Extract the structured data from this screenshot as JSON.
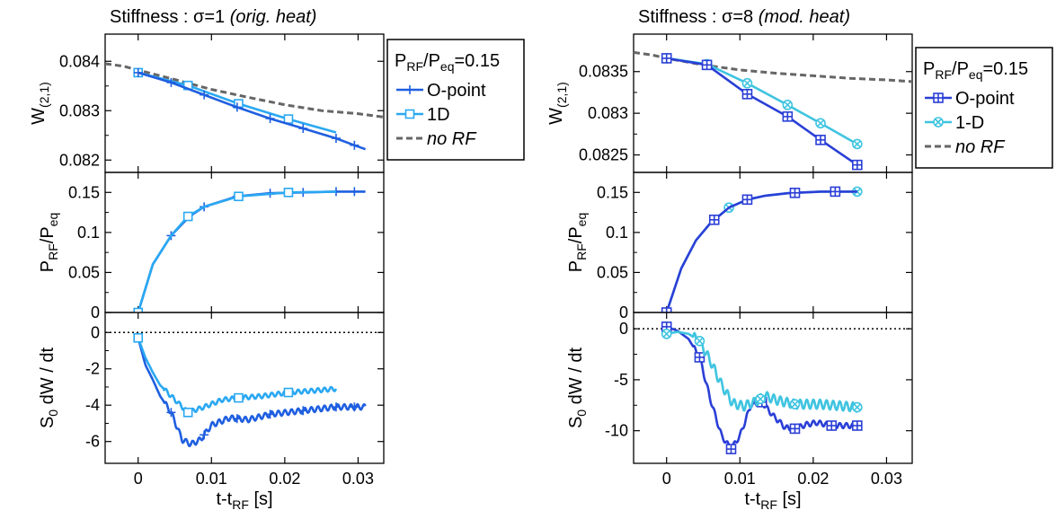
{
  "colors": {
    "opoint_left": "#1f5fe0",
    "oned_left": "#2aa8f2",
    "opoint_right": "#2a3fd6",
    "oned_right": "#3fc4e0",
    "norf": "#666666",
    "zero_line": "#000000"
  },
  "chart_data": [
    {
      "type": "line",
      "title": {
        "prefix": "Stiffness : ",
        "sym": "σ",
        "eq": "=1 ",
        "note": "(orig. heat)"
      },
      "xlabel": "t-t",
      "xlabel_sub": "RF",
      "xlabel_tail": " [s]",
      "xlim": [
        -0.0045,
        0.0335
      ],
      "xticks": [
        0,
        0.01,
        0.02,
        0.03
      ],
      "xtick_labels": [
        "0",
        "0.01",
        "0.02",
        "0.03"
      ],
      "legend": {
        "title_parts": [
          "P",
          "RF",
          "/P",
          "eq",
          "=0.15"
        ],
        "entries": [
          {
            "label": "O-point",
            "marker": "plus",
            "color_key": "opoint_left",
            "dash": false
          },
          {
            "label": "1D",
            "marker": "square",
            "color_key": "oned_left",
            "dash": false
          },
          {
            "label": "no RF",
            "marker": "none",
            "color_key": "norf",
            "dash": true,
            "italic": true
          }
        ]
      },
      "panels": [
        {
          "ylabel": "W",
          "ylabel_sub": "(2,1)",
          "ylim": [
            0.08175,
            0.08455
          ],
          "yticks": [
            0.082,
            0.083,
            0.084
          ],
          "ytick_labels": [
            "0.082",
            "0.083",
            "0.084"
          ],
          "series": [
            {
              "name": "no RF",
              "color_key": "norf",
              "dash": true,
              "marker": "none",
              "x": [
                -0.0045,
                -0.002,
                0,
                0.005,
                0.01,
                0.015,
                0.02,
                0.025,
                0.03,
                0.0335
              ],
              "y": [
                0.08395,
                0.0839,
                0.08382,
                0.08363,
                0.08343,
                0.08327,
                0.08312,
                0.083,
                0.08294,
                0.08287
              ]
            },
            {
              "name": "1D",
              "color_key": "oned_left",
              "dash": false,
              "marker": "square",
              "x": [
                0,
                0.0068,
                0.0137,
                0.0205,
                0.027
              ],
              "y": [
                0.08377,
                0.08351,
                0.08314,
                0.08283,
                0.08256
              ],
              "markers_x": [
                0,
                0.0068,
                0.0137,
                0.0205
              ]
            },
            {
              "name": "O-point",
              "color_key": "opoint_left",
              "dash": false,
              "marker": "plus",
              "x": [
                0,
                0.0045,
                0.009,
                0.0135,
                0.018,
                0.0225,
                0.027,
                0.0295,
                0.031
              ],
              "y": [
                0.08377,
                0.08357,
                0.08332,
                0.08307,
                0.08284,
                0.08264,
                0.08244,
                0.0823,
                0.08222
              ],
              "markers_x": [
                0,
                0.0045,
                0.009,
                0.0135,
                0.018,
                0.0225,
                0.027,
                0.0295
              ]
            }
          ]
        },
        {
          "ylabel_parts": [
            "P",
            "RF",
            "/P",
            "eq"
          ],
          "ylim": [
            0,
            0.175
          ],
          "yticks": [
            0,
            0.05,
            0.1,
            0.15
          ],
          "ytick_labels": [
            "0",
            "0.05",
            "0.1",
            "0.15"
          ],
          "series": [
            {
              "name": "O-point",
              "color_key": "opoint_left",
              "dash": false,
              "marker": "plus",
              "x": [
                0,
                0.002,
                0.0045,
                0.007,
                0.009,
                0.0135,
                0.018,
                0.0225,
                0.027,
                0.031
              ],
              "y": [
                0,
                0.06,
                0.096,
                0.12,
                0.132,
                0.145,
                0.149,
                0.15,
                0.151,
                0.151
              ],
              "markers_x": [
                0,
                0.0045,
                0.009,
                0.0135,
                0.018,
                0.0225,
                0.027,
                0.0295
              ]
            },
            {
              "name": "1D",
              "color_key": "oned_left",
              "dash": false,
              "marker": "square",
              "x": [
                0,
                0.002,
                0.0045,
                0.0068,
                0.009,
                0.0137,
                0.0205,
                0.027
              ],
              "y": [
                0,
                0.06,
                0.096,
                0.12,
                0.132,
                0.145,
                0.15,
                0.151
              ],
              "markers_x": [
                0,
                0.0068,
                0.0137,
                0.0205
              ]
            }
          ]
        },
        {
          "ylabel_parts": [
            "S",
            "0",
            " dW / dt"
          ],
          "ylim": [
            -7.2,
            1.1
          ],
          "yticks": [
            -6,
            -4,
            -2,
            0
          ],
          "ytick_labels": [
            "-6",
            "-4",
            "-2",
            "0"
          ],
          "zero_line": true,
          "series": [
            {
              "name": "O-point",
              "color_key": "opoint_left",
              "dash": false,
              "marker": "plus",
              "wiggle": 0.15,
              "x": [
                0,
                0.001,
                0.002,
                0.003,
                0.0045,
                0.006,
                0.0072,
                0.0085,
                0.01,
                0.0125,
                0.015,
                0.018,
                0.0225,
                0.027,
                0.031
              ],
              "y": [
                -0.3,
                -1.8,
                -2.6,
                -3.5,
                -4.4,
                -5.9,
                -6.15,
                -5.9,
                -5.1,
                -4.7,
                -4.8,
                -4.5,
                -4.3,
                -4.1,
                -4.1
              ],
              "markers_x": [
                0,
                0.0045,
                0.009,
                0.0135,
                0.018,
                0.0225,
                0.027,
                0.0295
              ]
            },
            {
              "name": "1D",
              "color_key": "oned_left",
              "dash": false,
              "marker": "square",
              "wiggle": 0.12,
              "x": [
                0,
                0.001,
                0.002,
                0.003,
                0.0045,
                0.0068,
                0.009,
                0.0115,
                0.0137,
                0.017,
                0.0205,
                0.024,
                0.027
              ],
              "y": [
                -0.3,
                -1.4,
                -2.2,
                -2.9,
                -3.5,
                -4.4,
                -4.1,
                -3.7,
                -3.6,
                -3.5,
                -3.3,
                -3.2,
                -3.1
              ],
              "markers_x": [
                0,
                0.0068,
                0.0137,
                0.0205
              ]
            }
          ]
        }
      ]
    },
    {
      "type": "line",
      "title": {
        "prefix": "Stiffness : ",
        "sym": "σ",
        "eq": "=8 ",
        "note": "(mod. heat)"
      },
      "xlabel": "t-t",
      "xlabel_sub": "RF",
      "xlabel_tail": " [s]",
      "xlim": [
        -0.0045,
        0.0335
      ],
      "xticks": [
        0,
        0.01,
        0.02,
        0.03
      ],
      "xtick_labels": [
        "0",
        "0.01",
        "0.02",
        "0.03"
      ],
      "legend": {
        "title_parts": [
          "P",
          "RF",
          "/P",
          "eq",
          "=0.15"
        ],
        "entries": [
          {
            "label": "O-point",
            "marker": "boxplus",
            "color_key": "opoint_right",
            "dash": false
          },
          {
            "label": "1-D",
            "marker": "circlex",
            "color_key": "oned_right",
            "dash": false
          },
          {
            "label": "no RF",
            "marker": "none",
            "color_key": "norf",
            "dash": true,
            "italic": true
          }
        ]
      },
      "panels": [
        {
          "ylabel": "W",
          "ylabel_sub": "(2,1)",
          "ylim": [
            0.08229,
            0.08395
          ],
          "yticks": [
            0.0825,
            0.083,
            0.0835
          ],
          "ytick_labels": [
            "0.0825",
            "0.083",
            "0.0835"
          ],
          "series": [
            {
              "name": "no RF",
              "color_key": "norf",
              "dash": true,
              "marker": "none",
              "x": [
                -0.0045,
                -0.002,
                0,
                0.005,
                0.01,
                0.015,
                0.02,
                0.025,
                0.03,
                0.0335
              ],
              "y": [
                0.08373,
                0.0837,
                0.08366,
                0.08358,
                0.08352,
                0.08348,
                0.08345,
                0.08342,
                0.0834,
                0.08338
              ]
            },
            {
              "name": "1-D",
              "color_key": "oned_right",
              "dash": false,
              "marker": "circlex",
              "x": [
                0,
                0.0055,
                0.011,
                0.0165,
                0.021,
                0.026
              ],
              "y": [
                0.08366,
                0.08359,
                0.08336,
                0.0831,
                0.08288,
                0.08263
              ],
              "markers_x": [
                0,
                0.0055,
                0.011,
                0.0165,
                0.021,
                0.026
              ]
            },
            {
              "name": "O-point",
              "color_key": "opoint_right",
              "dash": false,
              "marker": "boxplus",
              "x": [
                0,
                0.0055,
                0.011,
                0.0165,
                0.021,
                0.026
              ],
              "y": [
                0.08366,
                0.08358,
                0.08323,
                0.08296,
                0.08268,
                0.08238
              ],
              "markers_x": [
                0,
                0.0055,
                0.011,
                0.0165,
                0.021,
                0.026
              ]
            }
          ]
        },
        {
          "ylabel_parts": [
            "P",
            "RF",
            "/P",
            "eq"
          ],
          "ylim": [
            0,
            0.175
          ],
          "yticks": [
            0,
            0.05,
            0.1,
            0.15
          ],
          "ytick_labels": [
            "0",
            "0.05",
            "0.1",
            "0.15"
          ],
          "series": [
            {
              "name": "1-D",
              "color_key": "oned_right",
              "dash": false,
              "marker": "circlex",
              "x": [
                0,
                0.002,
                0.004,
                0.006,
                0.0085,
                0.011,
                0.0135,
                0.0165,
                0.021,
                0.026
              ],
              "y": [
                0,
                0.055,
                0.09,
                0.112,
                0.131,
                0.141,
                0.146,
                0.149,
                0.151,
                0.151
              ],
              "markers_x": [
                0,
                0.0085,
                0.0175,
                0.026
              ]
            },
            {
              "name": "O-point",
              "color_key": "opoint_right",
              "dash": false,
              "marker": "boxplus",
              "x": [
                0,
                0.002,
                0.004,
                0.006,
                0.0085,
                0.011,
                0.0135,
                0.0165,
                0.021,
                0.026
              ],
              "y": [
                0,
                0.055,
                0.09,
                0.112,
                0.131,
                0.141,
                0.146,
                0.149,
                0.151,
                0.151
              ],
              "markers_x": [
                0,
                0.0065,
                0.011,
                0.0175,
                0.023
              ]
            }
          ]
        },
        {
          "ylabel_parts": [
            "S",
            "0",
            " dW / dt"
          ],
          "ylim": [
            -13.2,
            1.6
          ],
          "yticks": [
            -10,
            -5,
            0
          ],
          "ytick_labels": [
            "-10",
            "-5",
            "0"
          ],
          "zero_line": true,
          "series": [
            {
              "name": "O-point",
              "color_key": "opoint_right",
              "dash": false,
              "marker": "boxplus",
              "wiggle": 0.25,
              "x": [
                0,
                0.0015,
                0.003,
                0.0045,
                0.006,
                0.0075,
                0.0088,
                0.01,
                0.0115,
                0.013,
                0.0145,
                0.0162,
                0.0175,
                0.019,
                0.0205,
                0.0225,
                0.026
              ],
              "y": [
                0.2,
                -0.2,
                -1.0,
                -2.8,
                -7.0,
                -10.5,
                -11.8,
                -10.5,
                -7.5,
                -7.2,
                -8.5,
                -9.7,
                -9.8,
                -9.4,
                -9.2,
                -9.5,
                -9.5
              ],
              "markers_x": [
                0,
                0.0045,
                0.0088,
                0.013,
                0.0175,
                0.0225,
                0.026
              ]
            },
            {
              "name": "1-D",
              "color_key": "oned_right",
              "dash": false,
              "marker": "circlex",
              "wiggle": 0.45,
              "x": [
                0,
                0.0015,
                0.003,
                0.0045,
                0.006,
                0.0075,
                0.009,
                0.0105,
                0.012,
                0.0135,
                0.015,
                0.0175,
                0.021,
                0.026
              ],
              "y": [
                -0.5,
                -0.3,
                -0.5,
                -1.2,
                -3.2,
                -5.5,
                -7.3,
                -7.6,
                -7.2,
                -6.6,
                -7.0,
                -7.4,
                -7.4,
                -7.7
              ],
              "markers_x": [
                0,
                0.0045,
                0.0128,
                0.0175,
                0.026
              ]
            }
          ]
        }
      ]
    }
  ]
}
